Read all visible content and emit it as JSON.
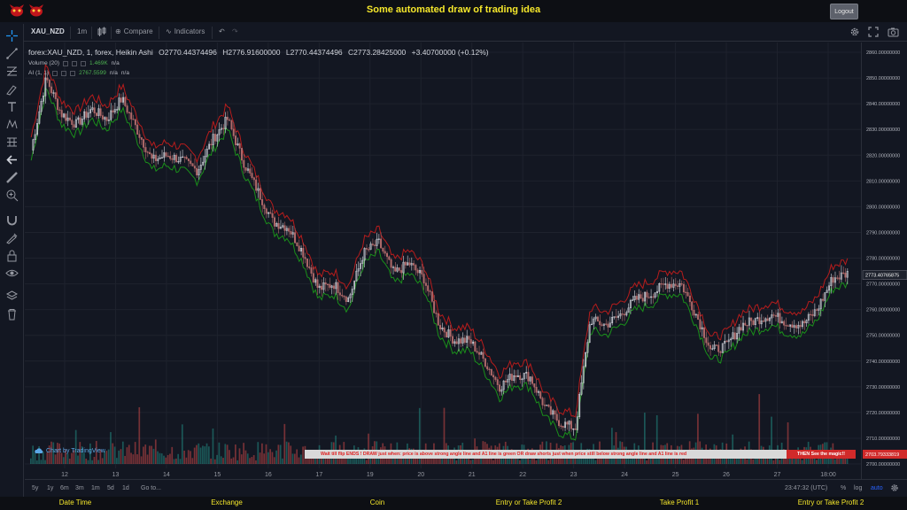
{
  "header": {
    "title": "Some automated draw of trading idea",
    "logout_label": "Logout"
  },
  "toolbar": {
    "symbol": "XAU_NZD",
    "interval": "1m",
    "compare_label": "Compare",
    "indicators_label": "Indicators"
  },
  "legend": {
    "symbol_line": "forex:XAU_NZD, 1, forex, Heikin Ashi",
    "open": "O2770.44374496",
    "high": "H2776.91600000",
    "low": "L2770.44374496",
    "close": "C2773.28425000",
    "change": "+3.40700000 (+0.12%)",
    "volume_label": "Volume (20)",
    "volume_value": "1.469K",
    "volume_na": "n/a",
    "ai_label": "AI (1, 1)",
    "ai_value": "2767.5599",
    "ai_na1": "n/a",
    "ai_na2": "n/a"
  },
  "banner": {
    "text": "Wait till flip ENDS  !    DRAW just when:  price is above strong angle line and A1 line is green          OR          draw shorts just when price still below strong angle line and A1 line is red",
    "action": "THEN See the magic!!"
  },
  "tv_logo": "Chart by TradingView",
  "bottombar": {
    "ranges": [
      "5y",
      "1y",
      "6m",
      "3m",
      "1m",
      "5d",
      "1d"
    ],
    "goto": "Go to...",
    "time": "23:47:32 (UTC)",
    "percent": "%",
    "log": "log",
    "auto": "auto"
  },
  "footer": {
    "columns": [
      "Date Time",
      "Exchange",
      "Coin",
      "Entry or Take Profit 2",
      "Take Profit 1",
      "Entry or Take Profit 2"
    ]
  },
  "chart_data": {
    "type": "line",
    "chart_style": "heikin-ashi candles with volume bars",
    "x_tick_labels": [
      "12",
      "13",
      "14",
      "15",
      "16",
      "17",
      "19",
      "20",
      "21",
      "22",
      "23",
      "24",
      "25",
      "26",
      "27",
      "18:00"
    ],
    "price_axis_labels": [
      "2860.00000000",
      "2850.00000000",
      "2840.00000000",
      "2830.00000000",
      "2820.00000000",
      "2810.00000000",
      "2800.00000000",
      "2790.00000000",
      "2780.00000000",
      "2770.00000000",
      "2760.00000000",
      "2750.00000000",
      "2740.00000000",
      "2730.00000000",
      "2720.00000000",
      "2710.00000000",
      "2700.00000000"
    ],
    "ylim": [
      2700,
      2860
    ],
    "current_price_label": "2773.40765875",
    "secondary_price_label": "2703.79333819",
    "series": [
      {
        "name": "close",
        "values": [
          2822,
          2850,
          2836,
          2832,
          2838,
          2834,
          2842,
          2830,
          2818,
          2820,
          2818,
          2814,
          2826,
          2834,
          2818,
          2806,
          2794,
          2792,
          2782,
          2768,
          2770,
          2764,
          2782,
          2786,
          2774,
          2778,
          2772,
          2754,
          2748,
          2748,
          2740,
          2730,
          2735,
          2734,
          2722,
          2716,
          2714,
          2756,
          2754,
          2758,
          2764,
          2766,
          2770,
          2770,
          2758,
          2744,
          2746,
          2754,
          2756,
          2758,
          2755,
          2754,
          2760,
          2772,
          2774
        ]
      }
    ],
    "colors": {
      "up": "#26a69a",
      "down": "#ef5350",
      "candle": "#d1d4dc",
      "ai_line_green": "#1a8f1a",
      "ai_line_red": "#b71c1c"
    }
  }
}
